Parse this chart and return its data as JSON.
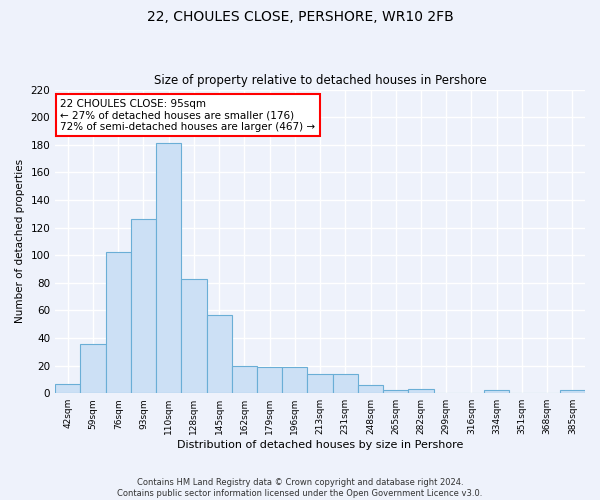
{
  "title1": "22, CHOULES CLOSE, PERSHORE, WR10 2FB",
  "title2": "Size of property relative to detached houses in Pershore",
  "xlabel": "Distribution of detached houses by size in Pershore",
  "ylabel": "Number of detached properties",
  "categories": [
    "42sqm",
    "59sqm",
    "76sqm",
    "93sqm",
    "110sqm",
    "128sqm",
    "145sqm",
    "162sqm",
    "179sqm",
    "196sqm",
    "213sqm",
    "231sqm",
    "248sqm",
    "265sqm",
    "282sqm",
    "299sqm",
    "316sqm",
    "334sqm",
    "351sqm",
    "368sqm",
    "385sqm"
  ],
  "values": [
    7,
    36,
    102,
    126,
    181,
    83,
    57,
    20,
    19,
    19,
    14,
    14,
    6,
    2,
    3,
    0,
    0,
    2,
    0,
    0,
    2
  ],
  "bar_color": "#cce0f5",
  "bar_edge_color": "#6aaed6",
  "annotation_text": "22 CHOULES CLOSE: 95sqm\n← 27% of detached houses are smaller (176)\n72% of semi-detached houses are larger (467) →",
  "annotation_box_color": "white",
  "annotation_box_edge_color": "red",
  "ylim": [
    0,
    220
  ],
  "yticks": [
    0,
    20,
    40,
    60,
    80,
    100,
    120,
    140,
    160,
    180,
    200,
    220
  ],
  "background_color": "#eef2fb",
  "grid_color": "white",
  "footer_text": "Contains HM Land Registry data © Crown copyright and database right 2024.\nContains public sector information licensed under the Open Government Licence v3.0."
}
